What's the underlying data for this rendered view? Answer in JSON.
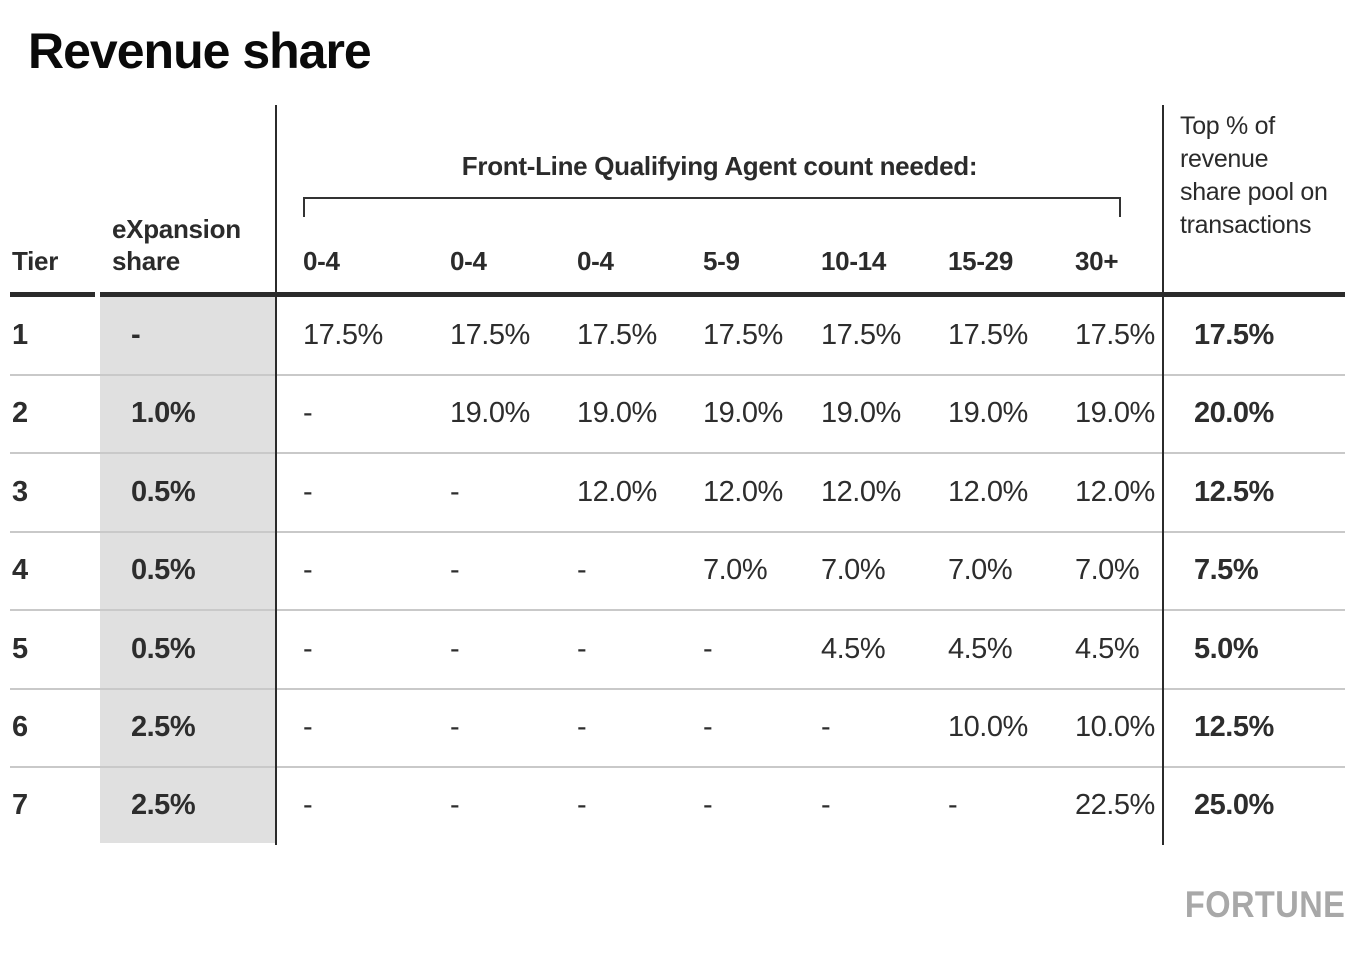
{
  "title": "Revenue share",
  "logo": "FORTUNE",
  "chart_data": {
    "type": "table",
    "title": "Revenue share",
    "headers": {
      "tier": "Tier",
      "expansion": "eXpansion share",
      "group": "Front-Line Qualifying Agent count needed:",
      "agent_counts": [
        "0-4",
        "0-4",
        "0-4",
        "5-9",
        "10-14",
        "15-29",
        "30+"
      ],
      "top": "Top % of revenue share pool on transactions"
    },
    "rows": [
      [
        "1",
        "-",
        "17.5%",
        "17.5%",
        "17.5%",
        "17.5%",
        "17.5%",
        "17.5%",
        "17.5%",
        "17.5%"
      ],
      [
        "2",
        "1.0%",
        "-",
        "19.0%",
        "19.0%",
        "19.0%",
        "19.0%",
        "19.0%",
        "19.0%",
        "20.0%"
      ],
      [
        "3",
        "0.5%",
        "-",
        "-",
        "12.0%",
        "12.0%",
        "12.0%",
        "12.0%",
        "12.0%",
        "12.5%"
      ],
      [
        "4",
        "0.5%",
        "-",
        "-",
        "-",
        "7.0%",
        "7.0%",
        "7.0%",
        "7.0%",
        "7.5%"
      ],
      [
        "5",
        "0.5%",
        "-",
        "-",
        "-",
        "-",
        "4.5%",
        "4.5%",
        "4.5%",
        "5.0%"
      ],
      [
        "6",
        "2.5%",
        "-",
        "-",
        "-",
        "-",
        "-",
        "10.0%",
        "10.0%",
        "12.5%"
      ],
      [
        "7",
        "2.5%",
        "-",
        "-",
        "-",
        "-",
        "-",
        "-",
        "22.5%",
        "25.0%"
      ]
    ]
  },
  "colors": {
    "background": "#ffffff",
    "title_text": "#0a0a0a",
    "body_text": "#2d2d2d",
    "rule_dark": "#2b2b2b",
    "row_separator": "#c9c9c9",
    "expansion_column_bg": "#e0e0e0",
    "logo_gray": "#a8a8a8"
  }
}
